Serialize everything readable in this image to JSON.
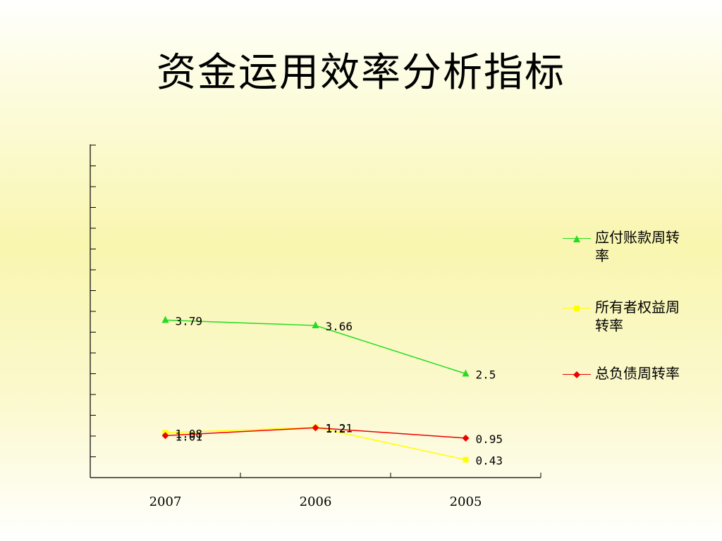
{
  "title": "资金运用效率分析指标",
  "chart_data": {
    "type": "line",
    "categories": [
      "2007",
      "2006",
      "2005"
    ],
    "series": [
      {
        "name": "应付账款周转率",
        "values": [
          3.79,
          3.66,
          2.5
        ],
        "labels": [
          "3.79",
          "3.66",
          "2.5"
        ],
        "color": "#22dd22",
        "marker": "triangle"
      },
      {
        "name": "所有者权益周转率",
        "values": [
          1.08,
          1.21,
          0.43
        ],
        "labels": [
          "1.08",
          "1.21",
          "0.43"
        ],
        "color": "#ffff00",
        "marker": "square"
      },
      {
        "name": "总负债周转率",
        "values": [
          1.01,
          1.2,
          0.95
        ],
        "labels": [
          "1.01",
          "1.2",
          "0.95"
        ],
        "color": "#ee0000",
        "marker": "diamond"
      }
    ],
    "legend": "right",
    "grid": false
  }
}
